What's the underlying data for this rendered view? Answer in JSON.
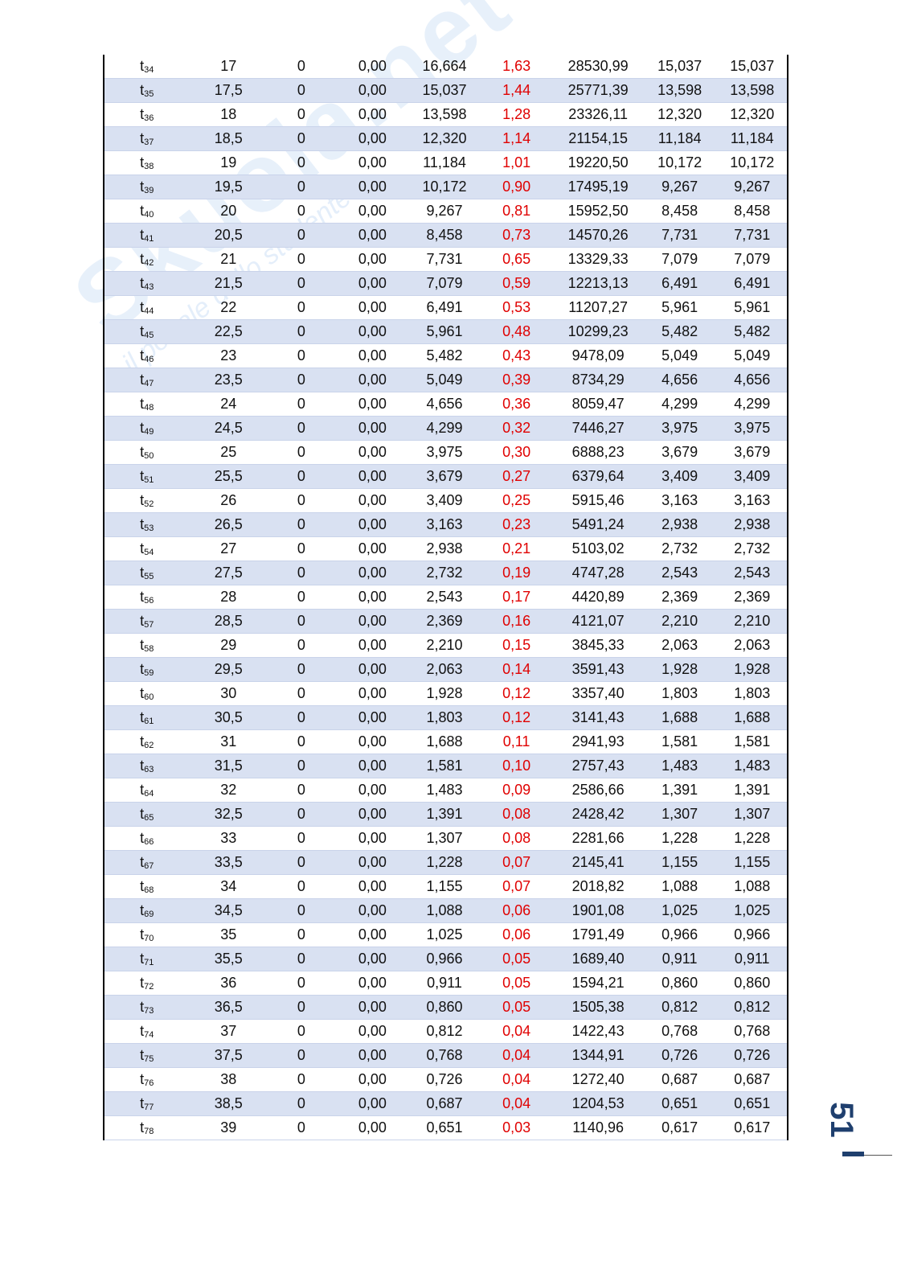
{
  "watermark": {
    "text": "Skuola.net",
    "subtext": "il portale dello studente"
  },
  "page_number": "51",
  "colors": {
    "row_alt": "#d9e1f2",
    "highlight_column": "#e00000",
    "page_number": "#1f3f6e"
  },
  "table": {
    "rows": [
      [
        "34",
        "17",
        "0",
        "0,00",
        "16,664",
        "1,63",
        "28530,99",
        "15,037",
        "15,037"
      ],
      [
        "35",
        "17,5",
        "0",
        "0,00",
        "15,037",
        "1,44",
        "25771,39",
        "13,598",
        "13,598"
      ],
      [
        "36",
        "18",
        "0",
        "0,00",
        "13,598",
        "1,28",
        "23326,11",
        "12,320",
        "12,320"
      ],
      [
        "37",
        "18,5",
        "0",
        "0,00",
        "12,320",
        "1,14",
        "21154,15",
        "11,184",
        "11,184"
      ],
      [
        "38",
        "19",
        "0",
        "0,00",
        "11,184",
        "1,01",
        "19220,50",
        "10,172",
        "10,172"
      ],
      [
        "39",
        "19,5",
        "0",
        "0,00",
        "10,172",
        "0,90",
        "17495,19",
        "9,267",
        "9,267"
      ],
      [
        "40",
        "20",
        "0",
        "0,00",
        "9,267",
        "0,81",
        "15952,50",
        "8,458",
        "8,458"
      ],
      [
        "41",
        "20,5",
        "0",
        "0,00",
        "8,458",
        "0,73",
        "14570,26",
        "7,731",
        "7,731"
      ],
      [
        "42",
        "21",
        "0",
        "0,00",
        "7,731",
        "0,65",
        "13329,33",
        "7,079",
        "7,079"
      ],
      [
        "43",
        "21,5",
        "0",
        "0,00",
        "7,079",
        "0,59",
        "12213,13",
        "6,491",
        "6,491"
      ],
      [
        "44",
        "22",
        "0",
        "0,00",
        "6,491",
        "0,53",
        "11207,27",
        "5,961",
        "5,961"
      ],
      [
        "45",
        "22,5",
        "0",
        "0,00",
        "5,961",
        "0,48",
        "10299,23",
        "5,482",
        "5,482"
      ],
      [
        "46",
        "23",
        "0",
        "0,00",
        "5,482",
        "0,43",
        "9478,09",
        "5,049",
        "5,049"
      ],
      [
        "47",
        "23,5",
        "0",
        "0,00",
        "5,049",
        "0,39",
        "8734,29",
        "4,656",
        "4,656"
      ],
      [
        "48",
        "24",
        "0",
        "0,00",
        "4,656",
        "0,36",
        "8059,47",
        "4,299",
        "4,299"
      ],
      [
        "49",
        "24,5",
        "0",
        "0,00",
        "4,299",
        "0,32",
        "7446,27",
        "3,975",
        "3,975"
      ],
      [
        "50",
        "25",
        "0",
        "0,00",
        "3,975",
        "0,30",
        "6888,23",
        "3,679",
        "3,679"
      ],
      [
        "51",
        "25,5",
        "0",
        "0,00",
        "3,679",
        "0,27",
        "6379,64",
        "3,409",
        "3,409"
      ],
      [
        "52",
        "26",
        "0",
        "0,00",
        "3,409",
        "0,25",
        "5915,46",
        "3,163",
        "3,163"
      ],
      [
        "53",
        "26,5",
        "0",
        "0,00",
        "3,163",
        "0,23",
        "5491,24",
        "2,938",
        "2,938"
      ],
      [
        "54",
        "27",
        "0",
        "0,00",
        "2,938",
        "0,21",
        "5103,02",
        "2,732",
        "2,732"
      ],
      [
        "55",
        "27,5",
        "0",
        "0,00",
        "2,732",
        "0,19",
        "4747,28",
        "2,543",
        "2,543"
      ],
      [
        "56",
        "28",
        "0",
        "0,00",
        "2,543",
        "0,17",
        "4420,89",
        "2,369",
        "2,369"
      ],
      [
        "57",
        "28,5",
        "0",
        "0,00",
        "2,369",
        "0,16",
        "4121,07",
        "2,210",
        "2,210"
      ],
      [
        "58",
        "29",
        "0",
        "0,00",
        "2,210",
        "0,15",
        "3845,33",
        "2,063",
        "2,063"
      ],
      [
        "59",
        "29,5",
        "0",
        "0,00",
        "2,063",
        "0,14",
        "3591,43",
        "1,928",
        "1,928"
      ],
      [
        "60",
        "30",
        "0",
        "0,00",
        "1,928",
        "0,12",
        "3357,40",
        "1,803",
        "1,803"
      ],
      [
        "61",
        "30,5",
        "0",
        "0,00",
        "1,803",
        "0,12",
        "3141,43",
        "1,688",
        "1,688"
      ],
      [
        "62",
        "31",
        "0",
        "0,00",
        "1,688",
        "0,11",
        "2941,93",
        "1,581",
        "1,581"
      ],
      [
        "63",
        "31,5",
        "0",
        "0,00",
        "1,581",
        "0,10",
        "2757,43",
        "1,483",
        "1,483"
      ],
      [
        "64",
        "32",
        "0",
        "0,00",
        "1,483",
        "0,09",
        "2586,66",
        "1,391",
        "1,391"
      ],
      [
        "65",
        "32,5",
        "0",
        "0,00",
        "1,391",
        "0,08",
        "2428,42",
        "1,307",
        "1,307"
      ],
      [
        "66",
        "33",
        "0",
        "0,00",
        "1,307",
        "0,08",
        "2281,66",
        "1,228",
        "1,228"
      ],
      [
        "67",
        "33,5",
        "0",
        "0,00",
        "1,228",
        "0,07",
        "2145,41",
        "1,155",
        "1,155"
      ],
      [
        "68",
        "34",
        "0",
        "0,00",
        "1,155",
        "0,07",
        "2018,82",
        "1,088",
        "1,088"
      ],
      [
        "69",
        "34,5",
        "0",
        "0,00",
        "1,088",
        "0,06",
        "1901,08",
        "1,025",
        "1,025"
      ],
      [
        "70",
        "35",
        "0",
        "0,00",
        "1,025",
        "0,06",
        "1791,49",
        "0,966",
        "0,966"
      ],
      [
        "71",
        "35,5",
        "0",
        "0,00",
        "0,966",
        "0,05",
        "1689,40",
        "0,911",
        "0,911"
      ],
      [
        "72",
        "36",
        "0",
        "0,00",
        "0,911",
        "0,05",
        "1594,21",
        "0,860",
        "0,860"
      ],
      [
        "73",
        "36,5",
        "0",
        "0,00",
        "0,860",
        "0,05",
        "1505,38",
        "0,812",
        "0,812"
      ],
      [
        "74",
        "37",
        "0",
        "0,00",
        "0,812",
        "0,04",
        "1422,43",
        "0,768",
        "0,768"
      ],
      [
        "75",
        "37,5",
        "0",
        "0,00",
        "0,768",
        "0,04",
        "1344,91",
        "0,726",
        "0,726"
      ],
      [
        "76",
        "38",
        "0",
        "0,00",
        "0,726",
        "0,04",
        "1272,40",
        "0,687",
        "0,687"
      ],
      [
        "77",
        "38,5",
        "0",
        "0,00",
        "0,687",
        "0,04",
        "1204,53",
        "0,651",
        "0,651"
      ],
      [
        "78",
        "39",
        "0",
        "0,00",
        "0,651",
        "0,03",
        "1140,96",
        "0,617",
        "0,617"
      ]
    ]
  }
}
